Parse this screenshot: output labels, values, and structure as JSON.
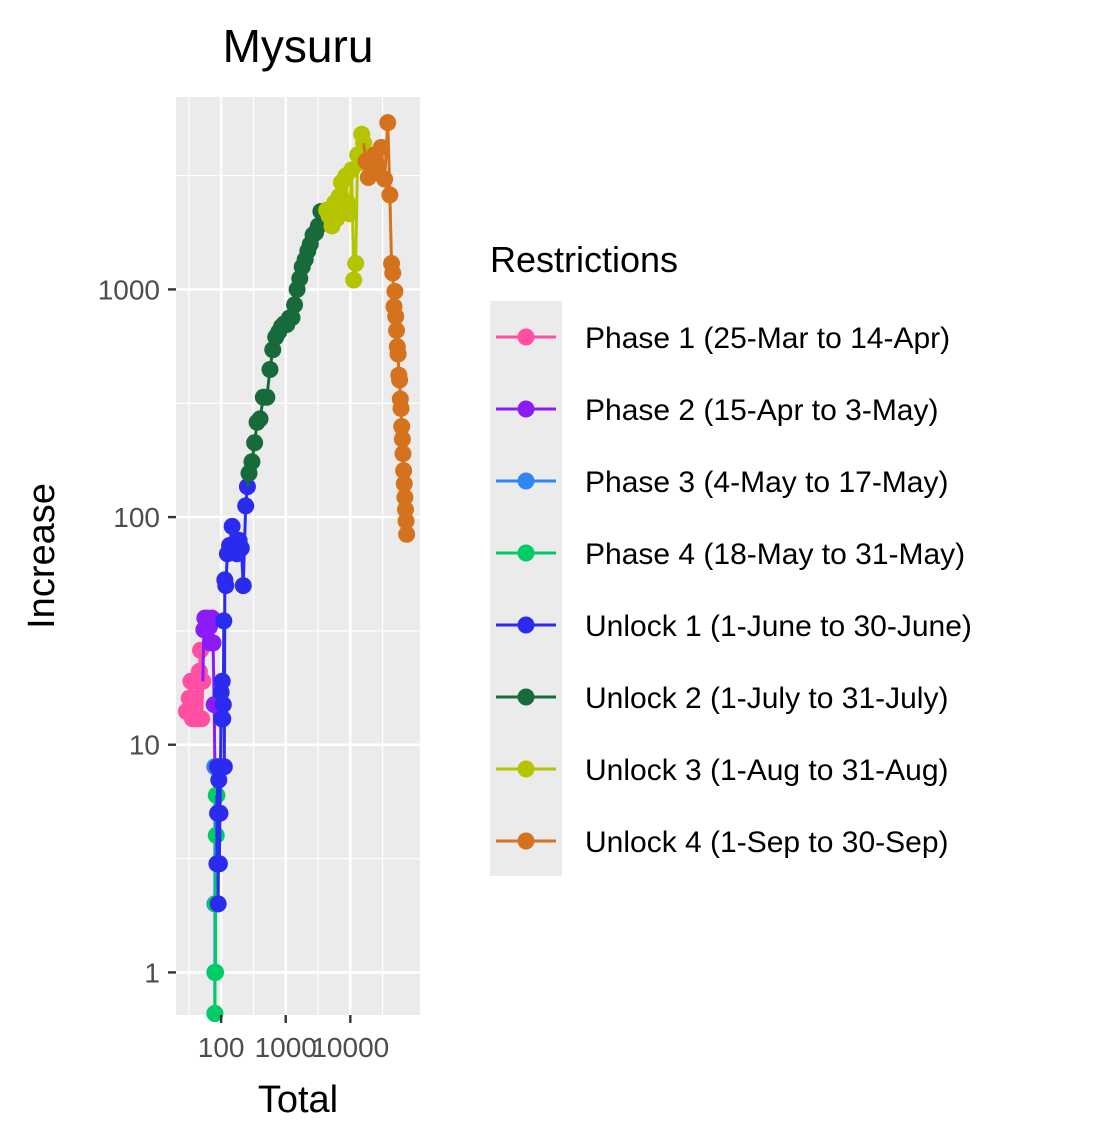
{
  "chart_data": {
    "type": "line",
    "title": "Mysuru",
    "xlabel": "Total",
    "ylabel": "Increase",
    "x_scale": "log10",
    "y_scale": "log10",
    "xlim": [
      20,
      120000
    ],
    "ylim": [
      0.65,
      7000
    ],
    "x_ticks": [
      {
        "value": 100,
        "label": "100"
      },
      {
        "value": 1000,
        "label": "1000"
      },
      {
        "value": 10000,
        "label": "10000"
      }
    ],
    "y_ticks": [
      {
        "value": 1,
        "label": "1"
      },
      {
        "value": 10,
        "label": "10"
      },
      {
        "value": 100,
        "label": "100"
      },
      {
        "value": 1000,
        "label": "1000"
      }
    ],
    "grid": true,
    "legend": {
      "title": "Restrictions",
      "placement": "right"
    },
    "series": [
      {
        "name": "Phase 1 (25-Mar to 14-Apr)",
        "color": "#ff4fa3",
        "points": [
          [
            29,
            14
          ],
          [
            32,
            16
          ],
          [
            34,
            19
          ],
          [
            36,
            13
          ],
          [
            38,
            16
          ],
          [
            40,
            13
          ],
          [
            42,
            19
          ],
          [
            44,
            13
          ],
          [
            46,
            21
          ],
          [
            48,
            26
          ],
          [
            50,
            13
          ],
          [
            52,
            19
          ]
        ]
      },
      {
        "name": "Phase 2 (15-Apr to 3-May)",
        "color": "#8b1cf7",
        "points": [
          [
            54,
            32
          ],
          [
            56,
            36
          ],
          [
            62,
            36
          ],
          [
            66,
            33
          ],
          [
            68,
            28
          ],
          [
            72,
            36
          ],
          [
            75,
            28
          ],
          [
            78,
            15
          ],
          [
            80,
            8
          ]
        ]
      },
      {
        "name": "Phase 3 (4-May to 17-May)",
        "color": "#2e86f5",
        "points": [
          [
            80,
            8
          ],
          [
            80,
            2
          ],
          [
            80,
            1
          ],
          [
            80,
            0.66
          ]
        ]
      },
      {
        "name": "Phase 4 (18-May to 31-May)",
        "color": "#00cc66",
        "points": [
          [
            80,
            0.66
          ],
          [
            80,
            1
          ],
          [
            82,
            1
          ],
          [
            82,
            2
          ],
          [
            84,
            4
          ],
          [
            84,
            6
          ],
          [
            86,
            6
          ]
        ]
      },
      {
        "name": "Unlock 1 (1-June to 30-June)",
        "color": "#2b2bf0",
        "points": [
          [
            86,
            3
          ],
          [
            88,
            5
          ],
          [
            88,
            8
          ],
          [
            90,
            2
          ],
          [
            92,
            7
          ],
          [
            94,
            3
          ],
          [
            96,
            5
          ],
          [
            98,
            8
          ],
          [
            100,
            17
          ],
          [
            102,
            13
          ],
          [
            104,
            19
          ],
          [
            106,
            13
          ],
          [
            108,
            15
          ],
          [
            110,
            35
          ],
          [
            112,
            8
          ],
          [
            114,
            53
          ],
          [
            118,
            50
          ],
          [
            125,
            69
          ],
          [
            135,
            75
          ],
          [
            148,
            91
          ],
          [
            160,
            76
          ],
          [
            175,
            69
          ],
          [
            190,
            79
          ],
          [
            205,
            73
          ],
          [
            220,
            50
          ],
          [
            240,
            112
          ],
          [
            255,
            136
          ]
        ]
      },
      {
        "name": "Unlock 2 (1-July to 31-July)",
        "color": "#176b3a",
        "points": [
          [
            270,
            156
          ],
          [
            300,
            175
          ],
          [
            330,
            212
          ],
          [
            360,
            261
          ],
          [
            400,
            270
          ],
          [
            450,
            336
          ],
          [
            510,
            336
          ],
          [
            570,
            445
          ],
          [
            630,
            543
          ],
          [
            700,
            617
          ],
          [
            780,
            651
          ],
          [
            860,
            686
          ],
          [
            940,
            705
          ],
          [
            1040,
            701
          ],
          [
            1140,
            749
          ],
          [
            1250,
            752
          ],
          [
            1370,
            855
          ],
          [
            1500,
            1000
          ],
          [
            1650,
            1117
          ],
          [
            1800,
            1256
          ],
          [
            2000,
            1352
          ],
          [
            2200,
            1477
          ],
          [
            2400,
            1580
          ],
          [
            2650,
            1735
          ],
          [
            2900,
            1777
          ],
          [
            3200,
            1900
          ],
          [
            3500,
            2200
          ],
          [
            3900,
            2050
          ]
        ]
      },
      {
        "name": "Unlock 3 (1-Aug to 31-Aug)",
        "color": "#b5c400",
        "points": [
          [
            4300,
            2226
          ],
          [
            4700,
            2100
          ],
          [
            5200,
            1900
          ],
          [
            5700,
            2400
          ],
          [
            6200,
            2050
          ],
          [
            6700,
            2560
          ],
          [
            7300,
            2950
          ],
          [
            7900,
            2300
          ],
          [
            8500,
            3150
          ],
          [
            9100,
            2400
          ],
          [
            9800,
            2150
          ],
          [
            10500,
            3350
          ],
          [
            11300,
            1100
          ],
          [
            12100,
            1300
          ],
          [
            13000,
            3900
          ],
          [
            14000,
            3600
          ],
          [
            15000,
            4800
          ],
          [
            16100,
            4400
          ]
        ]
      },
      {
        "name": "Unlock 4 (1-Sep to 30-Sep)",
        "color": "#d4721d",
        "points": [
          [
            17500,
            3650
          ],
          [
            19000,
            3100
          ],
          [
            21000,
            3200
          ],
          [
            23500,
            3900
          ],
          [
            26500,
            3400
          ],
          [
            30000,
            4200
          ],
          [
            34000,
            3050
          ],
          [
            38000,
            5400
          ],
          [
            41000,
            2600
          ],
          [
            43500,
            1300
          ],
          [
            45500,
            1180
          ],
          [
            47500,
            840
          ],
          [
            49000,
            980
          ],
          [
            50500,
            760
          ],
          [
            52000,
            660
          ],
          [
            53500,
            560
          ],
          [
            55000,
            520
          ],
          [
            56500,
            420
          ],
          [
            58000,
            400
          ],
          [
            59500,
            330
          ],
          [
            61000,
            300
          ],
          [
            62500,
            250
          ],
          [
            64000,
            220
          ],
          [
            65500,
            190
          ],
          [
            67000,
            160
          ],
          [
            68500,
            140
          ],
          [
            70000,
            122
          ],
          [
            71500,
            108
          ],
          [
            73000,
            96
          ],
          [
            74500,
            84
          ]
        ]
      }
    ]
  }
}
